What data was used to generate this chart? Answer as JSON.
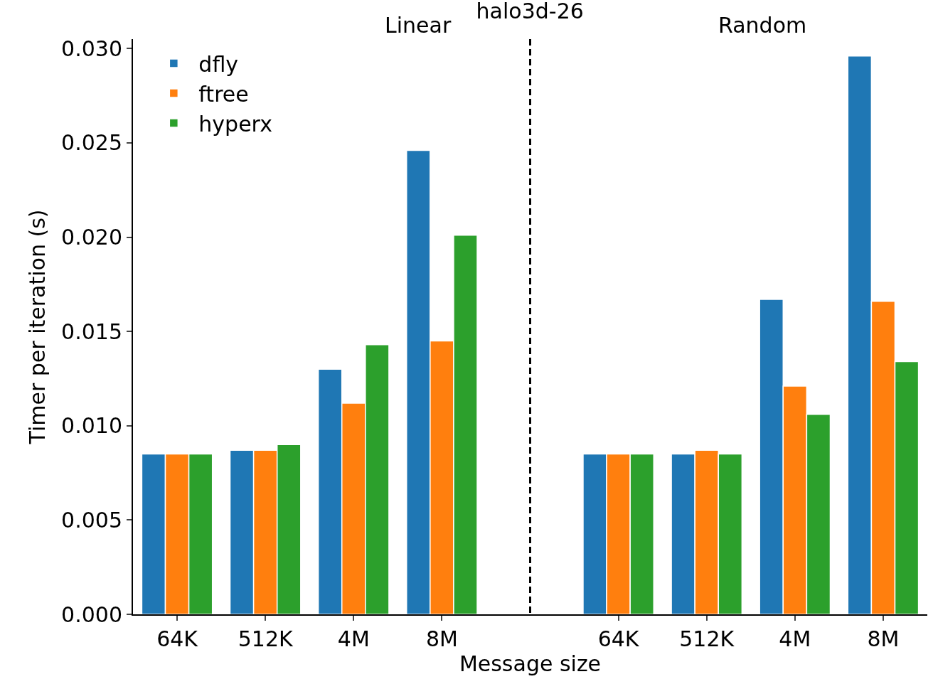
{
  "chart_data": {
    "type": "bar",
    "title": "halo3d-26",
    "xlabel": "Message size",
    "ylabel": "Timer per iteration (s)",
    "categories": [
      "64K",
      "512K",
      "4M",
      "8M",
      null,
      "64K",
      "512K",
      "4M",
      "8M"
    ],
    "series": [
      {
        "name": "dfly",
        "color": "#1f77b4",
        "values": [
          0.0085,
          0.0087,
          0.013,
          0.0246,
          null,
          0.0085,
          0.0085,
          0.0167,
          0.0296
        ]
      },
      {
        "name": "ftree",
        "color": "#ff7f0e",
        "values": [
          0.0085,
          0.0087,
          0.0112,
          0.0145,
          null,
          0.0085,
          0.0087,
          0.0121,
          0.0166
        ]
      },
      {
        "name": "hyperx",
        "color": "#2ca02c",
        "values": [
          0.0085,
          0.009,
          0.0143,
          0.0201,
          null,
          0.0085,
          0.0085,
          0.0106,
          0.0134
        ]
      }
    ],
    "ylim": [
      0,
      0.0305
    ],
    "yticks": [
      {
        "value": 0,
        "label": "0.000"
      },
      {
        "value": 0.005,
        "label": "0.005"
      },
      {
        "value": 0.01,
        "label": "0.010"
      },
      {
        "value": 0.015,
        "label": "0.015"
      },
      {
        "value": 0.02,
        "label": "0.020"
      },
      {
        "value": 0.025,
        "label": "0.025"
      },
      {
        "value": 0.03,
        "label": "0.030"
      }
    ],
    "annotations": [
      "Linear",
      "Random"
    ],
    "legend": "top left"
  }
}
